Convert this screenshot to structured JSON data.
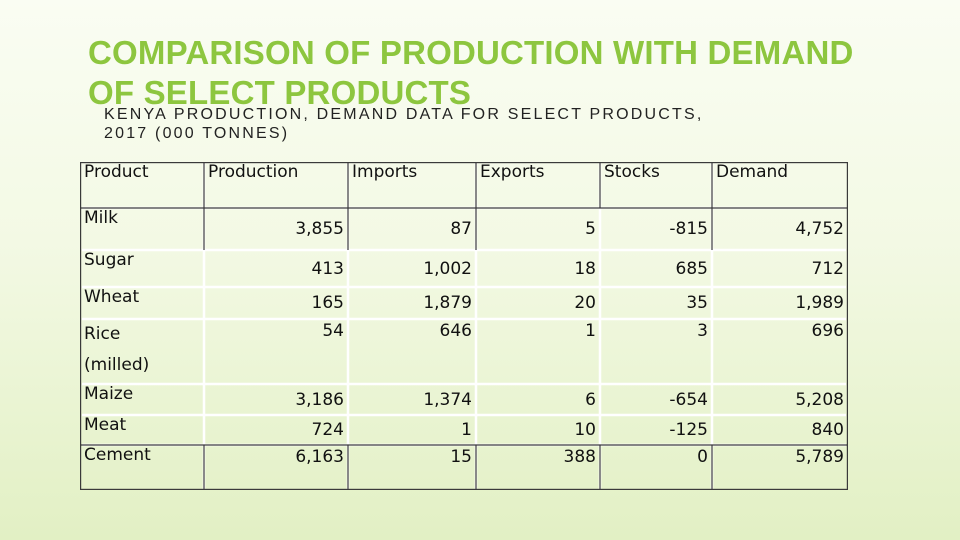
{
  "slide": {
    "title_line1": "COMPARISON OF PRODUCTION WITH DEMAND",
    "title_line2": "OF SELECT PRODUCTS",
    "subtitle_line1": "KENYA PRODUCTION, DEMAND DATA FOR SELECT PRODUCTS,",
    "subtitle_line2": "2017 (000 TONNES)"
  },
  "table": {
    "headers": [
      "Product",
      "Production",
      "Imports",
      "Exports",
      "Stocks",
      "Demand"
    ],
    "rows": [
      {
        "product": "Milk",
        "production": "3,855",
        "imports": "87",
        "exports": "5",
        "stocks": "-815",
        "demand": "4,752"
      },
      {
        "product": "Sugar",
        "production": "413",
        "imports": "1,002",
        "exports": "18",
        "stocks": "685",
        "demand": "712"
      },
      {
        "product": "Wheat",
        "production": "165",
        "imports": "1,879",
        "exports": "20",
        "stocks": "35",
        "demand": "1,989"
      },
      {
        "product": "Rice",
        "product_line2": "(milled)",
        "production": "54",
        "imports": "646",
        "exports": "1",
        "stocks": "3",
        "demand": "696"
      },
      {
        "product": "Maize",
        "production": "3,186",
        "imports": "1,374",
        "exports": "6",
        "stocks": "-654",
        "demand": "5,208"
      },
      {
        "product": "Meat",
        "production": "724",
        "imports": "1",
        "exports": "10",
        "stocks": "-125",
        "demand": "840"
      },
      {
        "product": "Cement",
        "production": "6,163",
        "imports": "15",
        "exports": "388",
        "stocks": "0",
        "demand": "5,789"
      }
    ]
  }
}
